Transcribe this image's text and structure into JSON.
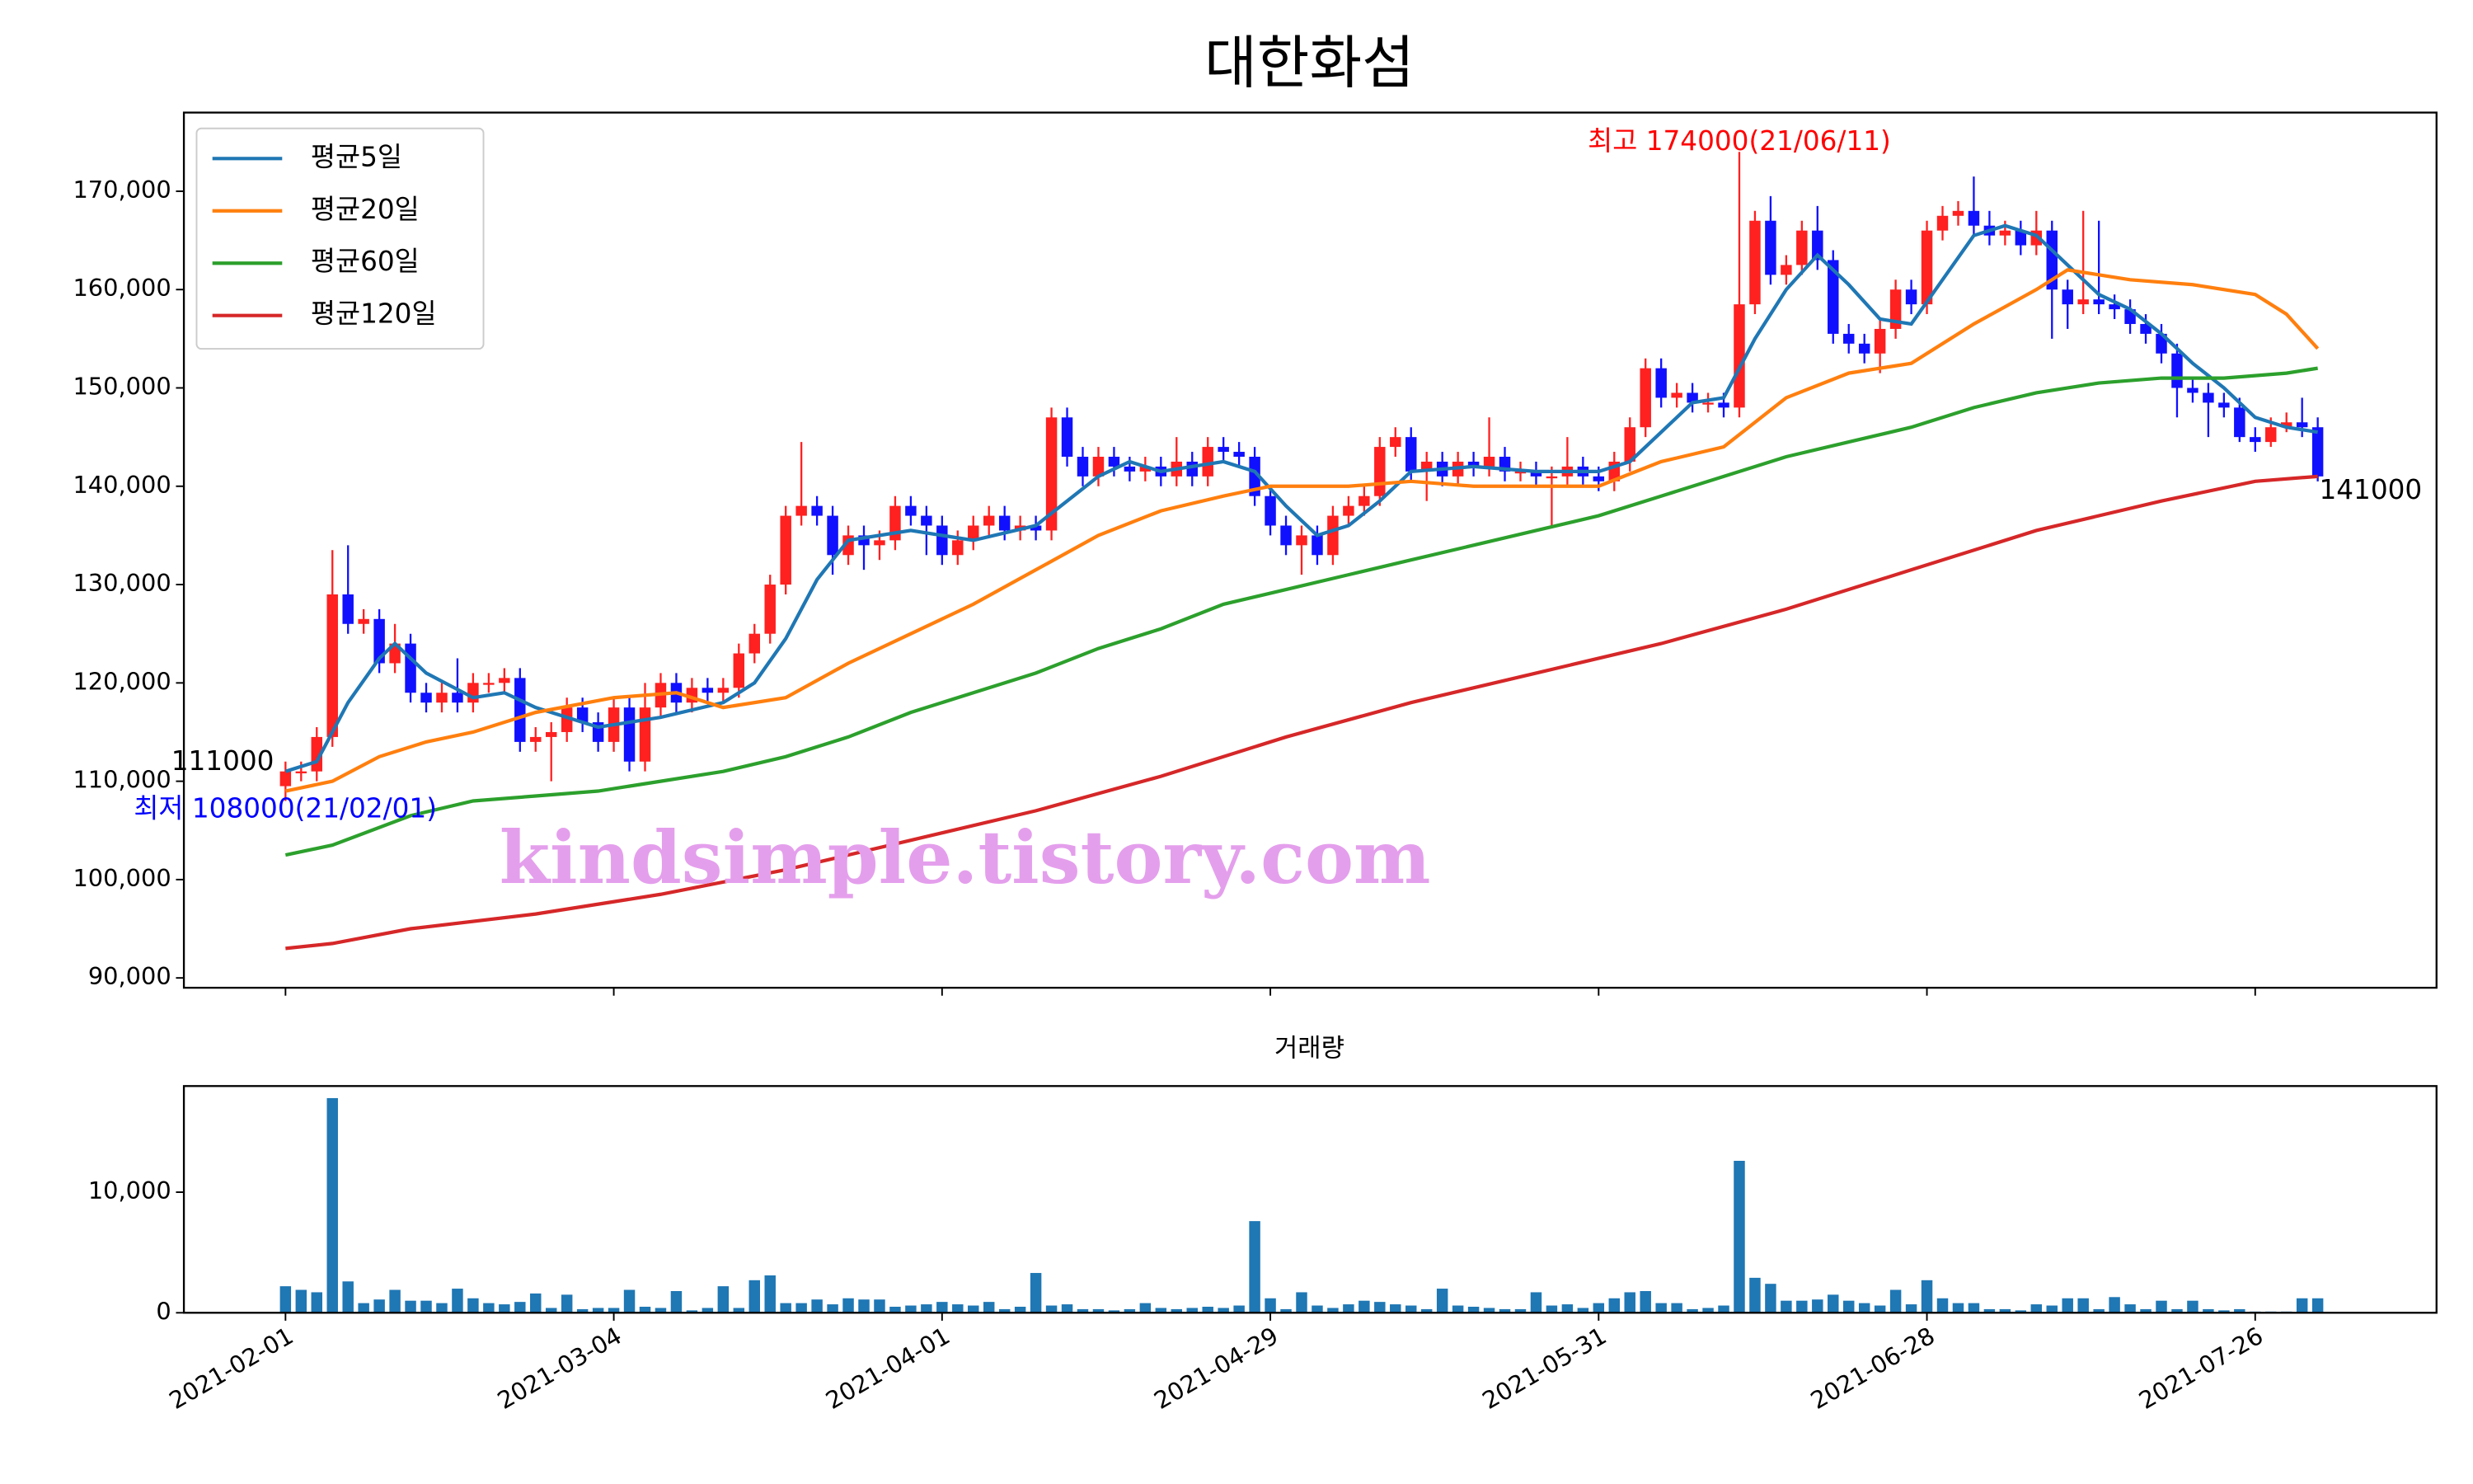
{
  "chart_data": [
    {
      "type": "candlestick",
      "title": "대한화섬",
      "xlim": [
        -6.5,
        137.6
      ],
      "xticks": [
        0,
        21,
        42,
        63,
        84,
        105,
        126
      ],
      "ylim": [
        89000,
        178000
      ],
      "yticks": [
        {
          "value": 90000,
          "label": "90,000"
        },
        {
          "value": 100000,
          "label": "100,000"
        },
        {
          "value": 110000,
          "label": "110,000"
        },
        {
          "value": 120000,
          "label": "120,000"
        },
        {
          "value": 130000,
          "label": "130,000"
        },
        {
          "value": 140000,
          "label": "140,000"
        },
        {
          "value": 150000,
          "label": "150,000"
        },
        {
          "value": 160000,
          "label": "160,000"
        },
        {
          "value": 170000,
          "label": "170,000"
        }
      ],
      "up_color": "#ff2020",
      "down_color": "#1010ff",
      "legend": "upper left",
      "open": [
        109500,
        111000,
        111000,
        114500,
        129000,
        126000,
        126500,
        122000,
        124000,
        119000,
        118000,
        119000,
        118000,
        120000,
        120000,
        120500,
        114000,
        114500,
        115000,
        117500,
        116000,
        114000,
        117500,
        112000,
        117500,
        120000,
        118000,
        119500,
        119000,
        119500,
        123000,
        125000,
        130000,
        137000,
        138000,
        137000,
        133000,
        135000,
        134000,
        134500,
        138000,
        137000,
        136000,
        133000,
        134500,
        136000,
        137000,
        135500,
        136000,
        135500,
        147000,
        143000,
        141000,
        143000,
        142000,
        141500,
        142000,
        141000,
        142500,
        141000,
        144000,
        143500,
        143000,
        139000,
        136000,
        134000,
        135000,
        133000,
        137000,
        138000,
        139000,
        144000,
        145000,
        141500,
        142500,
        141000,
        142500,
        142000,
        143000,
        141500,
        141500,
        141000,
        141000,
        142000,
        141000,
        140500,
        142500,
        146000,
        152000,
        149000,
        149500,
        148500,
        148500,
        148000,
        158500,
        167000,
        161500,
        162500,
        166000,
        163000,
        155500,
        154500,
        153500,
        156000,
        160000,
        158500,
        166000,
        167500,
        168000,
        166500,
        165500,
        166000,
        164500,
        166000,
        160000,
        158500,
        159000,
        158500,
        158000,
        156500,
        155500,
        153500,
        150000,
        149500,
        148500,
        148000,
        145000,
        144500,
        146000,
        146500,
        146000
      ],
      "high": [
        112000,
        112000,
        115500,
        133500,
        134000,
        127500,
        127500,
        126000,
        125000,
        120000,
        120000,
        122500,
        121000,
        121000,
        121500,
        121500,
        115500,
        116000,
        118500,
        118500,
        117000,
        118500,
        118500,
        120000,
        121000,
        121000,
        120500,
        120500,
        120500,
        124000,
        126000,
        131000,
        138000,
        144500,
        139000,
        138000,
        136000,
        136000,
        135500,
        139000,
        139000,
        138000,
        137000,
        135500,
        137000,
        138000,
        138000,
        137000,
        137000,
        148000,
        148000,
        144000,
        144000,
        144000,
        143000,
        143000,
        143000,
        145000,
        143500,
        145000,
        145000,
        144500,
        144000,
        140000,
        137000,
        136000,
        136000,
        138000,
        139000,
        140000,
        145000,
        146000,
        146000,
        143500,
        143500,
        143500,
        143500,
        147000,
        144000,
        142500,
        142500,
        142000,
        145000,
        143000,
        142000,
        143500,
        147000,
        153000,
        153000,
        150500,
        150500,
        149500,
        149500,
        174000,
        168000,
        169500,
        163500,
        167000,
        168500,
        164000,
        156500,
        155500,
        157000,
        161000,
        161000,
        167000,
        168500,
        169000,
        171500,
        168000,
        167000,
        167000,
        168000,
        167000,
        161000,
        168000,
        167000,
        159500,
        159000,
        157500,
        156500,
        154500,
        151000,
        150500,
        149500,
        149000,
        146000,
        147000,
        147500,
        149000,
        147000
      ],
      "low": [
        108000,
        110000,
        110000,
        113500,
        125000,
        125000,
        121000,
        121000,
        118000,
        117000,
        117000,
        117000,
        117000,
        119000,
        119000,
        113000,
        113000,
        110000,
        114000,
        115000,
        113000,
        113000,
        111000,
        111000,
        116500,
        117000,
        117000,
        118000,
        118000,
        118500,
        122000,
        124000,
        129000,
        136000,
        136000,
        131000,
        132000,
        131500,
        132500,
        133500,
        136000,
        133000,
        132000,
        132000,
        133500,
        135000,
        134500,
        134500,
        134500,
        134500,
        142000,
        140000,
        140000,
        141000,
        140500,
        140500,
        140000,
        140000,
        140000,
        140000,
        142500,
        142000,
        138000,
        135000,
        133000,
        131000,
        132000,
        132000,
        136000,
        137000,
        138000,
        143000,
        140500,
        138500,
        140000,
        140000,
        141000,
        141000,
        140500,
        140500,
        140000,
        136000,
        140000,
        140000,
        139500,
        139500,
        141500,
        145000,
        148000,
        148000,
        147500,
        147500,
        147000,
        147000,
        157500,
        160500,
        160500,
        161500,
        162000,
        154500,
        153500,
        152500,
        151500,
        155000,
        157500,
        157500,
        165000,
        166500,
        165500,
        164500,
        164500,
        163500,
        163500,
        155000,
        156000,
        157500,
        157500,
        157000,
        155500,
        154500,
        152500,
        147000,
        148500,
        145000,
        147000,
        144500,
        143500,
        144000,
        145500,
        145000,
        140500
      ],
      "close": [
        111000,
        111000,
        114500,
        129000,
        126000,
        126500,
        122000,
        124000,
        119000,
        118000,
        119000,
        118000,
        120000,
        120000,
        120500,
        114000,
        114500,
        115000,
        117500,
        116000,
        114000,
        117500,
        112000,
        117500,
        120000,
        118000,
        119500,
        119000,
        119500,
        123000,
        125000,
        130000,
        137000,
        138000,
        137000,
        133000,
        135000,
        134000,
        134500,
        138000,
        137000,
        136000,
        133000,
        134500,
        136000,
        137000,
        135500,
        136000,
        135500,
        147000,
        143000,
        141000,
        143000,
        142000,
        141500,
        142000,
        141000,
        142500,
        141000,
        144000,
        143500,
        143000,
        139000,
        136000,
        134000,
        135000,
        133000,
        137000,
        138000,
        139000,
        144000,
        145000,
        141500,
        142500,
        141000,
        142500,
        142000,
        143000,
        141500,
        141500,
        141000,
        141000,
        142000,
        141000,
        140500,
        142500,
        146000,
        152000,
        149000,
        149500,
        148500,
        148500,
        148000,
        158500,
        167000,
        161500,
        162500,
        166000,
        163000,
        155500,
        154500,
        153500,
        156000,
        160000,
        158500,
        166000,
        167500,
        168000,
        166500,
        165500,
        166000,
        164500,
        166000,
        160000,
        158500,
        159000,
        158500,
        158000,
        156500,
        155500,
        153500,
        150000,
        149500,
        148500,
        148000,
        145000,
        144500,
        146000,
        146500,
        146000,
        141000
      ],
      "series": [
        {
          "name": "평균5일",
          "color": "#1f77b4",
          "x": [
            0,
            2,
            4,
            6,
            7,
            9,
            12,
            14,
            16,
            20,
            24,
            28,
            30,
            32,
            34,
            36,
            40,
            44,
            48,
            50,
            52,
            54,
            56,
            60,
            62,
            64,
            66,
            68,
            70,
            72,
            76,
            80,
            84,
            86,
            88,
            90,
            92,
            94,
            96,
            98,
            100,
            102,
            104,
            106,
            108,
            110,
            112,
            114,
            116,
            118,
            120,
            122,
            124,
            126,
            128,
            130
          ],
          "values": [
            111000,
            112000,
            118000,
            122500,
            124000,
            121000,
            118500,
            119000,
            117500,
            115500,
            116500,
            118000,
            120000,
            124500,
            130500,
            134500,
            135500,
            134500,
            136000,
            138500,
            141000,
            142500,
            141500,
            142500,
            141500,
            138000,
            135000,
            136000,
            138500,
            141500,
            142000,
            141500,
            141500,
            142500,
            145500,
            148500,
            149000,
            155000,
            160000,
            163500,
            160500,
            157000,
            156500,
            161000,
            165500,
            166500,
            165500,
            162500,
            159500,
            158000,
            155500,
            152500,
            150000,
            147000,
            146000,
            145500
          ]
        },
        {
          "name": "평균20일",
          "color": "#ff7f0e",
          "x": [
            0,
            3,
            6,
            9,
            12,
            16,
            21,
            25,
            28,
            32,
            36,
            40,
            44,
            48,
            52,
            56,
            60,
            63,
            68,
            72,
            76,
            80,
            84,
            88,
            92,
            96,
            100,
            104,
            108,
            112,
            114,
            118,
            122,
            126,
            128,
            130
          ],
          "values": [
            109000,
            110000,
            112500,
            114000,
            115000,
            117000,
            118500,
            119000,
            117500,
            118500,
            122000,
            125000,
            128000,
            131500,
            135000,
            137500,
            139000,
            140000,
            140000,
            140500,
            140000,
            140000,
            140000,
            142500,
            144000,
            149000,
            151500,
            152500,
            156500,
            160000,
            162000,
            161000,
            160500,
            159500,
            157500,
            154000
          ]
        },
        {
          "name": "평균60일",
          "color": "#2ca02c",
          "x": [
            0,
            3,
            8,
            12,
            16,
            20,
            24,
            28,
            32,
            36,
            40,
            44,
            48,
            52,
            56,
            60,
            64,
            68,
            72,
            76,
            80,
            84,
            88,
            92,
            96,
            100,
            104,
            108,
            112,
            116,
            120,
            124,
            128,
            130
          ],
          "values": [
            102500,
            103500,
            106500,
            108000,
            108500,
            109000,
            110000,
            111000,
            112500,
            114500,
            117000,
            119000,
            121000,
            123500,
            125500,
            128000,
            129500,
            131000,
            132500,
            134000,
            135500,
            137000,
            139000,
            141000,
            143000,
            144500,
            146000,
            148000,
            149500,
            150500,
            151000,
            151000,
            151500,
            152000
          ]
        },
        {
          "name": "평균120일",
          "color": "#d62728",
          "x": [
            0,
            3,
            8,
            16,
            24,
            32,
            40,
            48,
            56,
            64,
            72,
            80,
            88,
            96,
            104,
            112,
            120,
            126,
            130
          ],
          "values": [
            93000,
            93500,
            95000,
            96500,
            98500,
            101000,
            104000,
            107000,
            110500,
            114500,
            118000,
            121000,
            124000,
            127500,
            131500,
            135500,
            138500,
            140500,
            141000
          ]
        }
      ],
      "annotations": [
        {
          "text": "최고 174000(21/06/11)",
          "color": "#ff0000"
        },
        {
          "text": "최저 108000(21/02/01)",
          "color": "#0000ff"
        },
        {
          "text": "111000",
          "color": "#000000"
        },
        {
          "text": "141000",
          "color": "#000000"
        },
        {
          "text": "kindsimple.tistory.com",
          "color": "#e49fec"
        }
      ]
    },
    {
      "type": "bar",
      "title": "거래량",
      "color": "#1f77b4",
      "xlim": [
        -6.5,
        137.6
      ],
      "xticks": [
        {
          "value": 0,
          "label": "2021-02-01"
        },
        {
          "value": 21,
          "label": "2021-03-04"
        },
        {
          "value": 42,
          "label": "2021-04-01"
        },
        {
          "value": 63,
          "label": "2021-04-29"
        },
        {
          "value": 84,
          "label": "2021-05-31"
        },
        {
          "value": 105,
          "label": "2021-06-28"
        },
        {
          "value": 126,
          "label": "2021-07-26"
        }
      ],
      "ylim": [
        0,
        18800
      ],
      "yticks": [
        0,
        {
          "value": 10000,
          "label": "10,000"
        }
      ],
      "values": [
        2200,
        1900,
        1700,
        17800,
        2600,
        800,
        1100,
        1900,
        1000,
        1000,
        800,
        2000,
        1200,
        800,
        700,
        900,
        1600,
        400,
        1500,
        300,
        400,
        400,
        1900,
        500,
        400,
        1800,
        200,
        400,
        2200,
        400,
        2700,
        3100,
        800,
        800,
        1100,
        700,
        1200,
        1100,
        1100,
        500,
        600,
        700,
        900,
        700,
        600,
        900,
        300,
        500,
        3300,
        600,
        700,
        300,
        300,
        200,
        300,
        800,
        400,
        300,
        400,
        500,
        400,
        600,
        7600,
        1200,
        300,
        1700,
        600,
        400,
        700,
        1000,
        900,
        700,
        600,
        300,
        2000,
        600,
        500,
        400,
        300,
        300,
        1700,
        600,
        700,
        400,
        800,
        1200,
        1700,
        1800,
        800,
        800,
        300,
        400,
        600,
        12600,
        2900,
        2400,
        1000,
        1000,
        1100,
        1500,
        1000,
        800,
        600,
        1900,
        700,
        2700,
        1200,
        800,
        800,
        300,
        300,
        200,
        700,
        600,
        1200,
        1200,
        300,
        1300,
        700,
        300,
        1000,
        300,
        1000,
        300,
        200,
        300,
        100,
        100,
        100,
        1200,
        1200
      ]
    }
  ]
}
